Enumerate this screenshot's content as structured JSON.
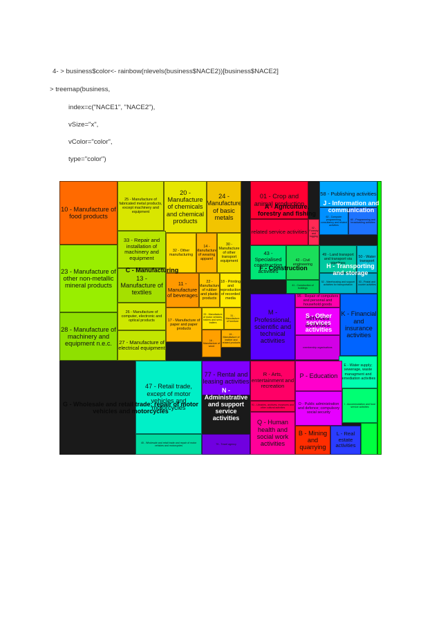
{
  "code_lines": [
    "4- > business$color<- rainbow(nlevels(business$NACE2))[business$NACE2]",
    "> treemap(business,",
    "index=c(\"NACE1\", \"NACE2\"),",
    "vSize=\"x\",",
    "vColor=\"color\",",
    "type=\"color\")"
  ],
  "treemap": {
    "cells": [
      {
        "label": "10 - Manufacture of food products",
        "color": "#ff6a00"
      },
      {
        "label": "25 - Manufacture of fabricated metal products, except machinery and equipment",
        "color": "#d9e600"
      },
      {
        "label": "20 - Manufacture of chemicals and chemical products",
        "color": "#e6e600"
      },
      {
        "label": "24 - Manufacture of basic metals",
        "color": "#f2c400"
      },
      {
        "label": "23 - Manufacture of other non-metallic mineral products",
        "color": "#99ee00"
      },
      {
        "label": "33 - Repair and installation of machinery and equipment",
        "color": "#b8e600"
      },
      {
        "label": "32 - Other manufacturing",
        "color": "#ffd800"
      },
      {
        "label": "14 - Manufacture of wearing apparel",
        "color": "#ffb300"
      },
      {
        "label": "30 - Manufacture of other transport equipment",
        "color": "#f3e000"
      },
      {
        "label": "13 - Manufacture of textiles",
        "color": "#a5e000"
      },
      {
        "label": "11 - Manufacture of beverages",
        "color": "#ff9900"
      },
      {
        "label": "22 - Manufacture of rubber and plastic products",
        "color": "#ffc700"
      },
      {
        "label": "18 - Printing and reproduction of recorded media",
        "color": "#ffea00"
      },
      {
        "label": "28 - Manufacture of machinery and equipment n.e.c.",
        "color": "#8fe000"
      },
      {
        "label": "26 - Manufacture of computer, electronic and optical products",
        "color": "#cde800"
      },
      {
        "label": "17 - Manufacture of paper and paper products",
        "color": "#ffba00"
      },
      {
        "label": "29 - Manufacture of motor vehicles, trailers and semi-trailers",
        "color": "#ffe400"
      },
      {
        "label": "31 - Manufacture of furniture",
        "color": "#ffd200"
      },
      {
        "label": "27 - Manufacture of electrical equipment",
        "color": "#c2e600"
      },
      {
        "label": "16 - Manufacture of wood",
        "color": "#ff9f00"
      },
      {
        "label": "15 - Manufacture of leather and related products",
        "color": "#ffb000"
      },
      {
        "label": "01 - Crop and animal production",
        "color": "#ff0033"
      },
      {
        "label": "related service activities",
        "color": "#ff0040"
      },
      {
        "label": "02 - Forestry and logging",
        "color": "#ff2a55"
      },
      {
        "label": "58 - Publishing activities",
        "color": "#00a6ff"
      },
      {
        "label": "62 - Computer programming, consultancy and related activities",
        "color": "#0090ff"
      },
      {
        "label": "60 - Programming and broadcasting activities",
        "color": "#1e73ff"
      },
      {
        "label": "43 - Specialised construction activities",
        "color": "#00e676"
      },
      {
        "label": "42 - Civil engineering",
        "color": "#1ade5a"
      },
      {
        "label": "41 - Construction of buildings",
        "color": "#00d25a"
      },
      {
        "label": "49 - Land transport and transport via pipelines",
        "color": "#00c8a0"
      },
      {
        "label": "50 - Water transport",
        "color": "#00bed2"
      },
      {
        "label": "52 - Warehousing and support activities for transportation",
        "color": "#00b4c8"
      },
      {
        "label": "53 - Postal and courier activities",
        "color": "#00aac8"
      },
      {
        "label": "95 - Repair of computers and personal and household goods",
        "color": "#ff00aa"
      },
      {
        "label": "M - Professional, scientific and technical activities",
        "color": "#5a00ff"
      },
      {
        "label": "services activities",
        "color": "#f000ff"
      },
      {
        "label": "membership organisations",
        "color": "#d200e6"
      },
      {
        "label": "K - Financial and insurance activities",
        "color": "#0064ff"
      },
      {
        "label": "E - Water supply; sewerage, waste managment and remediation activities",
        "color": "#00ffb0"
      },
      {
        "label": "47 - Retail trade, except of motor vehicles and motorcycles",
        "color": "#00f0c8"
      },
      {
        "label": "45 - Wholesale and retail trade and repair of motor vehicles and motorcycles",
        "color": "#00dca0"
      },
      {
        "label": "77 - Rental and leasing activities",
        "color": "#8000ff"
      },
      {
        "label": "79 - Travel agency",
        "color": "#7000e0"
      },
      {
        "label": "R - Arts, entertainment and recreation",
        "color": "#ff0066"
      },
      {
        "label": "91 - Libraries, archives, museums and other cultural activities",
        "color": "#ff0055"
      },
      {
        "label": "P - Education",
        "color": "#ff00cc"
      },
      {
        "label": "O - Public administration and defence; compulsory social security",
        "color": "#e600ff"
      },
      {
        "label": "I - Accommodation and food service activities",
        "color": "#00ff73"
      },
      {
        "label": "Q - Human health and social work activities",
        "color": "#ff0099"
      },
      {
        "label": "B - Mining and quarrying",
        "color": "#ff2d00"
      },
      {
        "label": "L - Real estate activities",
        "color": "#2a3cff"
      },
      {
        "label": "",
        "color": "#00ff40"
      },
      {
        "label": "",
        "color": "#00ff00"
      }
    ],
    "groups": [
      {
        "label": "C - Manufacturing"
      },
      {
        "label": "A - Agriculture, forestry and fishing"
      },
      {
        "label": "J - Information and communication"
      },
      {
        "label": "F - Construction"
      },
      {
        "label": "H - Transporting and storage"
      },
      {
        "label": "S - Other services activities"
      },
      {
        "label": "G - Wholesale and retail trade; repair of motor vehicles and motorcycles"
      },
      {
        "label": "N - Administrative and support service activities"
      }
    ]
  }
}
